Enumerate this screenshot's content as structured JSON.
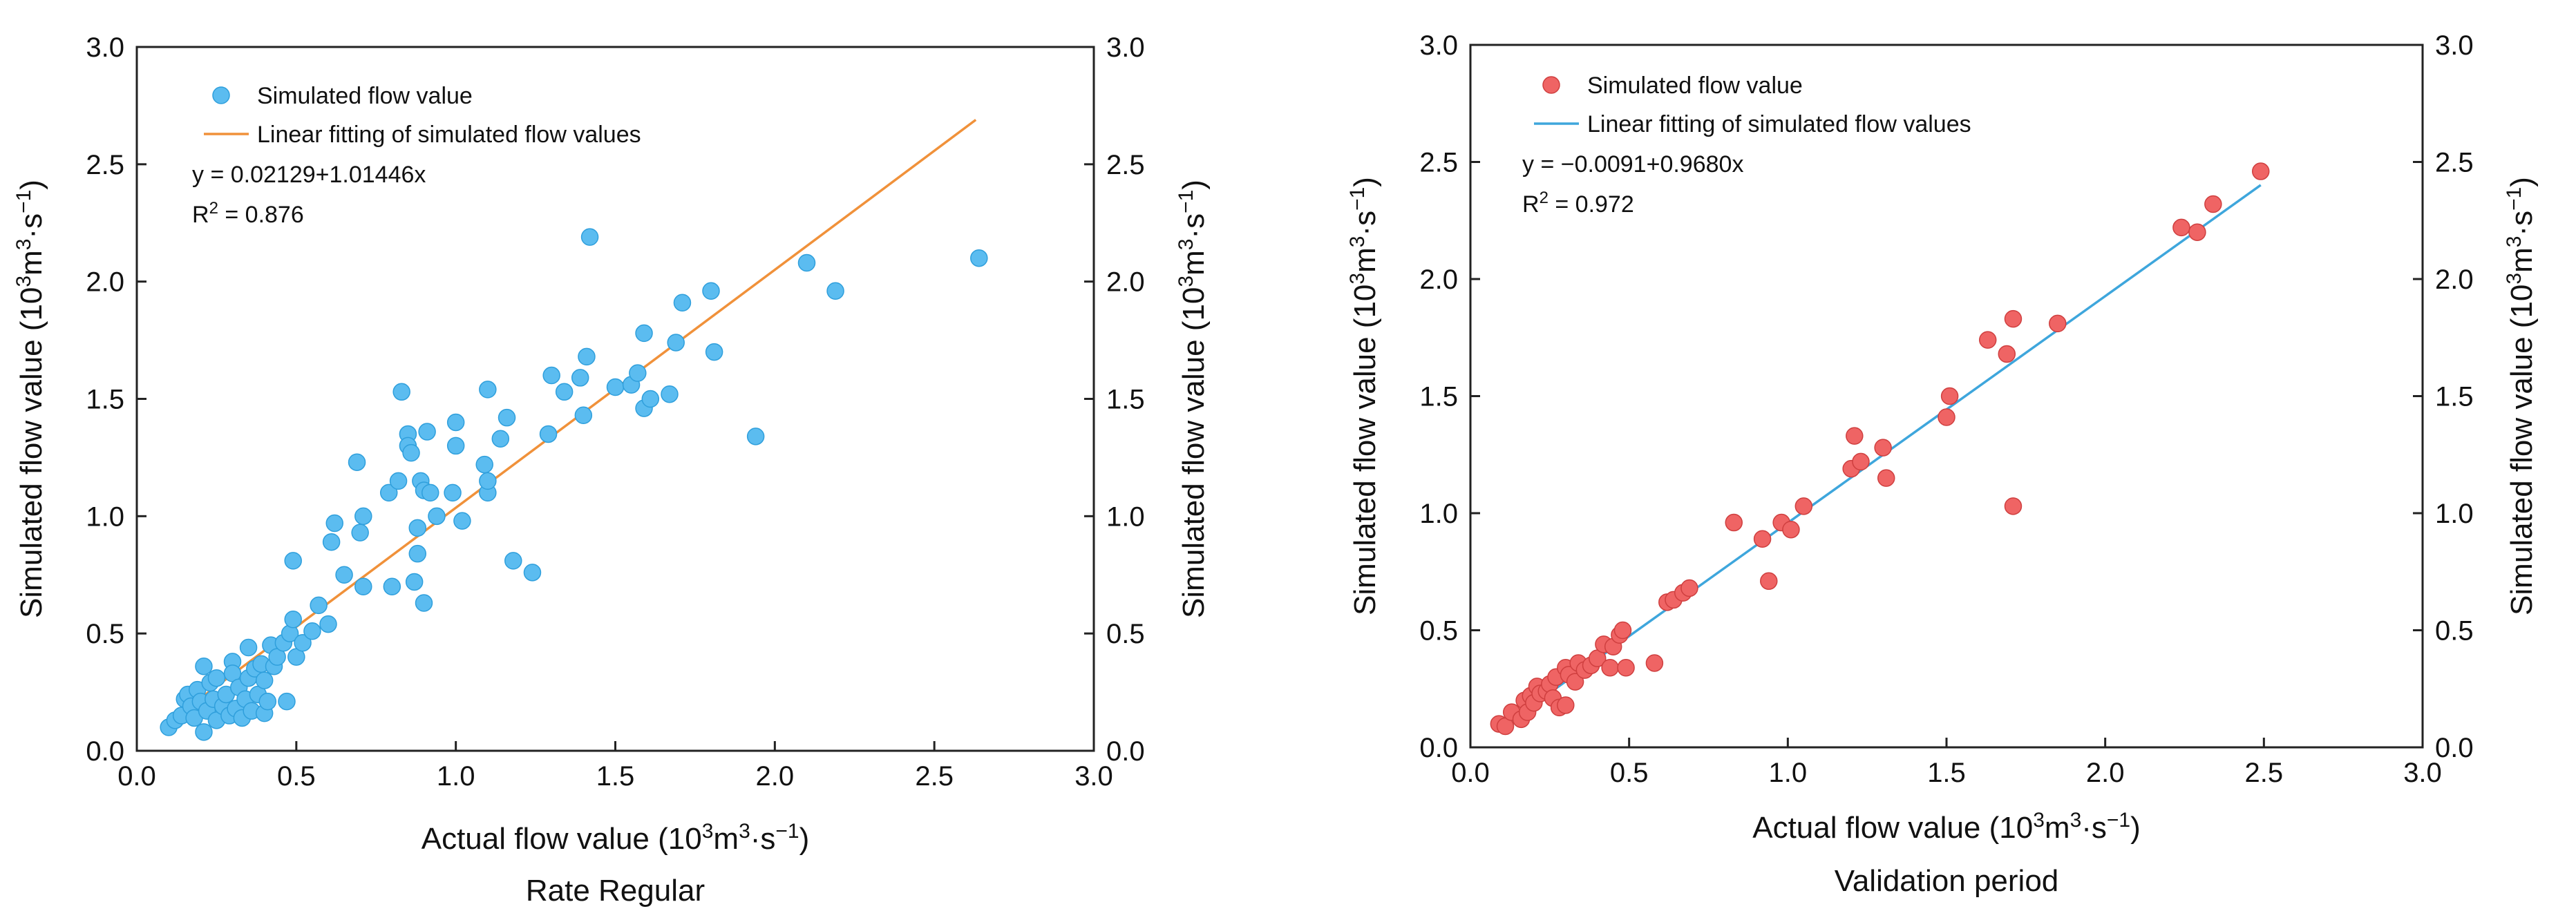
{
  "chart_data": [
    {
      "type": "scatter",
      "subtitle": "Rate Regular",
      "xlabel": "Actual flow value (10³m³·s⁻¹)",
      "ylabel": "Simulated flow value (10³m³·s⁻¹)",
      "ylabel_right": "Simulated flow value (10³m³·s⁻¹)",
      "xlim": [
        0,
        3
      ],
      "ylim": [
        0,
        3
      ],
      "x_ticks": [
        "0.0",
        "0.5",
        "1.0",
        "1.5",
        "2.0",
        "2.5",
        "3.0"
      ],
      "y_ticks": [
        "0.0",
        "0.5",
        "1.0",
        "1.5",
        "2.0",
        "2.5",
        "3.0"
      ],
      "legend_position": "top-left",
      "scatter_name": "Simulated flow value",
      "fit_name": "Linear fitting of simulated flow values",
      "equation": "y = 0.02129+1.01446x",
      "r2_label": "R",
      "r2_sup": "2",
      "r2_value": " = 0.876",
      "colors": {
        "point": "#5bbcf0",
        "point_edge": "#2f9fdc",
        "fit": "#f0913a"
      },
      "fit_line": {
        "intercept": 0.02129,
        "slope": 1.01446,
        "x_start": 0.1,
        "x_end": 2.63
      },
      "points": [
        [
          0.1,
          0.1
        ],
        [
          0.12,
          0.13
        ],
        [
          0.14,
          0.15
        ],
        [
          0.15,
          0.22
        ],
        [
          0.16,
          0.24
        ],
        [
          0.17,
          0.19
        ],
        [
          0.18,
          0.14
        ],
        [
          0.19,
          0.26
        ],
        [
          0.2,
          0.21
        ],
        [
          0.21,
          0.36
        ],
        [
          0.21,
          0.08
        ],
        [
          0.22,
          0.17
        ],
        [
          0.23,
          0.29
        ],
        [
          0.24,
          0.22
        ],
        [
          0.25,
          0.13
        ],
        [
          0.25,
          0.31
        ],
        [
          0.27,
          0.19
        ],
        [
          0.28,
          0.24
        ],
        [
          0.29,
          0.15
        ],
        [
          0.3,
          0.38
        ],
        [
          0.3,
          0.33
        ],
        [
          0.31,
          0.18
        ],
        [
          0.32,
          0.27
        ],
        [
          0.33,
          0.14
        ],
        [
          0.34,
          0.22
        ],
        [
          0.35,
          0.31
        ],
        [
          0.35,
          0.44
        ],
        [
          0.36,
          0.17
        ],
        [
          0.37,
          0.35
        ],
        [
          0.38,
          0.24
        ],
        [
          0.39,
          0.37
        ],
        [
          0.4,
          0.16
        ],
        [
          0.4,
          0.3
        ],
        [
          0.41,
          0.21
        ],
        [
          0.42,
          0.45
        ],
        [
          0.43,
          0.36
        ],
        [
          0.44,
          0.4
        ],
        [
          0.46,
          0.46
        ],
        [
          0.47,
          0.21
        ],
        [
          0.48,
          0.5
        ],
        [
          0.49,
          0.56
        ],
        [
          0.49,
          0.81
        ],
        [
          0.5,
          0.4
        ],
        [
          0.52,
          0.46
        ],
        [
          0.55,
          0.51
        ],
        [
          0.57,
          0.62
        ],
        [
          0.6,
          0.54
        ],
        [
          0.61,
          0.89
        ],
        [
          0.62,
          0.97
        ],
        [
          0.65,
          0.75
        ],
        [
          0.69,
          1.23
        ],
        [
          0.7,
          0.93
        ],
        [
          0.71,
          1.0
        ],
        [
          0.71,
          0.7
        ],
        [
          0.79,
          1.1
        ],
        [
          0.8,
          0.7
        ],
        [
          0.82,
          1.15
        ],
        [
          0.83,
          1.53
        ],
        [
          0.85,
          1.35
        ],
        [
          0.85,
          1.3
        ],
        [
          0.86,
          1.27
        ],
        [
          0.87,
          0.72
        ],
        [
          0.88,
          0.84
        ],
        [
          0.88,
          0.95
        ],
        [
          0.89,
          1.15
        ],
        [
          0.9,
          1.11
        ],
        [
          0.9,
          0.63
        ],
        [
          0.91,
          1.36
        ],
        [
          0.92,
          1.1
        ],
        [
          0.94,
          1.0
        ],
        [
          0.99,
          1.1
        ],
        [
          1.0,
          1.3
        ],
        [
          1.0,
          1.4
        ],
        [
          1.02,
          0.98
        ],
        [
          1.09,
          1.22
        ],
        [
          1.1,
          1.1
        ],
        [
          1.1,
          1.15
        ],
        [
          1.1,
          1.54
        ],
        [
          1.14,
          1.33
        ],
        [
          1.16,
          1.42
        ],
        [
          1.18,
          0.81
        ],
        [
          1.24,
          0.76
        ],
        [
          1.29,
          1.35
        ],
        [
          1.3,
          1.6
        ],
        [
          1.34,
          1.53
        ],
        [
          1.39,
          1.59
        ],
        [
          1.4,
          1.43
        ],
        [
          1.41,
          1.68
        ],
        [
          1.42,
          2.19
        ],
        [
          1.5,
          1.55
        ],
        [
          1.55,
          1.56
        ],
        [
          1.57,
          1.61
        ],
        [
          1.59,
          1.46
        ],
        [
          1.59,
          1.78
        ],
        [
          1.61,
          1.5
        ],
        [
          1.67,
          1.52
        ],
        [
          1.69,
          1.74
        ],
        [
          1.71,
          1.91
        ],
        [
          1.8,
          1.96
        ],
        [
          1.81,
          1.7
        ],
        [
          1.94,
          1.34
        ],
        [
          2.1,
          2.08
        ],
        [
          2.19,
          1.96
        ],
        [
          2.64,
          2.1
        ]
      ]
    },
    {
      "type": "scatter",
      "subtitle": "Validation period",
      "xlabel": "Actual flow value (10³m³·s⁻¹)",
      "ylabel": "Simulated flow value (10³m³·s⁻¹)",
      "ylabel_right": "Simulated flow value (10³m³·s⁻¹)",
      "xlim": [
        0,
        3
      ],
      "ylim": [
        0,
        3
      ],
      "x_ticks": [
        "0.0",
        "0.5",
        "1.0",
        "1.5",
        "2.0",
        "2.5",
        "3.0"
      ],
      "y_ticks": [
        "0.0",
        "0.5",
        "1.0",
        "1.5",
        "2.0",
        "2.5",
        "3.0"
      ],
      "legend_position": "top-left",
      "scatter_name": "Simulated flow value",
      "fit_name": "Linear fitting of simulated flow values",
      "equation": "y = −0.0091+0.9680x",
      "r2_label": "R",
      "r2_sup": "2",
      "r2_value": " = 0.972",
      "colors": {
        "point": "#ef6464",
        "point_edge": "#cf3f3f",
        "fit": "#3ea6dc"
      },
      "fit_line": {
        "intercept": -0.0091,
        "slope": 0.968,
        "x_start": 0.1,
        "x_end": 2.49
      },
      "points": [
        [
          0.09,
          0.1
        ],
        [
          0.11,
          0.09
        ],
        [
          0.13,
          0.15
        ],
        [
          0.16,
          0.12
        ],
        [
          0.17,
          0.2
        ],
        [
          0.18,
          0.15
        ],
        [
          0.19,
          0.22
        ],
        [
          0.2,
          0.19
        ],
        [
          0.21,
          0.26
        ],
        [
          0.22,
          0.23
        ],
        [
          0.24,
          0.24
        ],
        [
          0.25,
          0.27
        ],
        [
          0.26,
          0.21
        ],
        [
          0.27,
          0.3
        ],
        [
          0.28,
          0.17
        ],
        [
          0.3,
          0.18
        ],
        [
          0.3,
          0.34
        ],
        [
          0.31,
          0.31
        ],
        [
          0.33,
          0.28
        ],
        [
          0.34,
          0.36
        ],
        [
          0.36,
          0.33
        ],
        [
          0.38,
          0.35
        ],
        [
          0.4,
          0.38
        ],
        [
          0.42,
          0.44
        ],
        [
          0.44,
          0.34
        ],
        [
          0.45,
          0.43
        ],
        [
          0.47,
          0.48
        ],
        [
          0.48,
          0.5
        ],
        [
          0.49,
          0.34
        ],
        [
          0.58,
          0.36
        ],
        [
          0.62,
          0.62
        ],
        [
          0.64,
          0.63
        ],
        [
          0.67,
          0.66
        ],
        [
          0.69,
          0.68
        ],
        [
          0.83,
          0.96
        ],
        [
          0.92,
          0.89
        ],
        [
          0.94,
          0.71
        ],
        [
          0.98,
          0.96
        ],
        [
          1.01,
          0.93
        ],
        [
          1.05,
          1.03
        ],
        [
          1.2,
          1.19
        ],
        [
          1.21,
          1.33
        ],
        [
          1.23,
          1.22
        ],
        [
          1.3,
          1.28
        ],
        [
          1.31,
          1.15
        ],
        [
          1.5,
          1.41
        ],
        [
          1.51,
          1.5
        ],
        [
          1.63,
          1.74
        ],
        [
          1.69,
          1.68
        ],
        [
          1.71,
          1.83
        ],
        [
          1.71,
          1.03
        ],
        [
          1.85,
          1.81
        ],
        [
          2.24,
          2.22
        ],
        [
          2.29,
          2.2
        ],
        [
          2.34,
          2.32
        ],
        [
          2.49,
          2.46
        ]
      ]
    }
  ]
}
